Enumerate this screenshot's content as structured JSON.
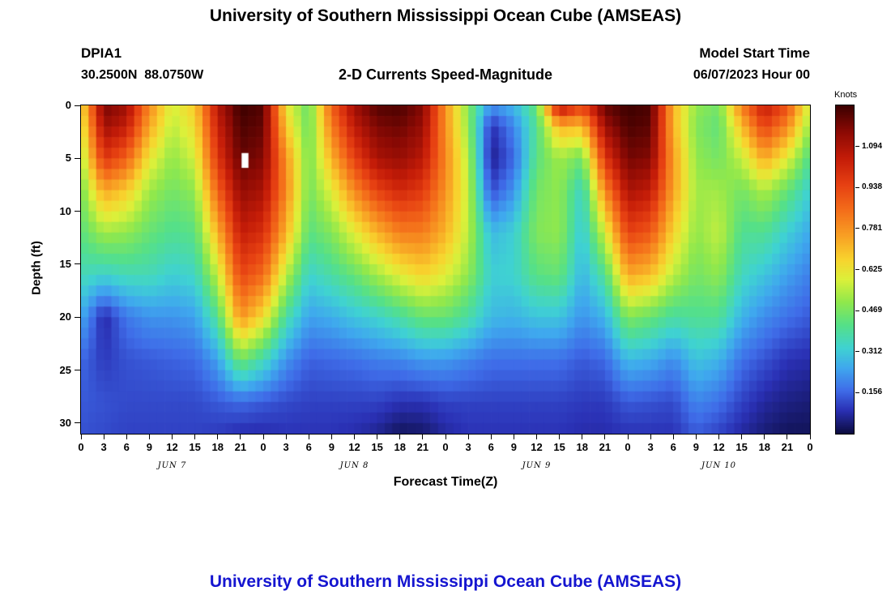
{
  "header": {
    "title": "University of Southern Mississippi Ocean Cube (AMSEAS)",
    "station": "DPIA1",
    "coordinates": "30.2500N  88.0750W",
    "subtitle": "2-D Currents Speed-Magnitude",
    "model_start_label": "Model Start Time",
    "model_start_value": "06/07/2023 Hour 00"
  },
  "footer": {
    "next_title": "University of Southern Mississippi Ocean Cube (AMSEAS)",
    "title_color": "#1515d0"
  },
  "chart_data": {
    "type": "heatmap",
    "title": "2-D Currents Speed-Magnitude",
    "xlabel": "Forecast Time(Z)",
    "ylabel": "Depth (ft)",
    "colorbar_label": "Knots",
    "colorbar_ticks": [
      0.156,
      0.312,
      0.469,
      0.625,
      0.781,
      0.938,
      1.094
    ],
    "value_range": [
      0,
      1.25
    ],
    "grid": false,
    "x_hours": [
      0,
      3,
      6,
      9,
      12,
      15,
      18,
      21,
      24,
      27,
      30,
      33,
      36,
      39,
      42,
      45,
      48,
      51,
      54,
      57,
      60,
      63,
      66,
      69,
      72,
      75,
      78,
      81,
      84,
      87,
      90,
      93,
      96
    ],
    "x_tick_labels": [
      "0",
      "3",
      "6",
      "9",
      "12",
      "15",
      "18",
      "21",
      "0",
      "3",
      "6",
      "9",
      "12",
      "15",
      "18",
      "21",
      "0",
      "3",
      "6",
      "9",
      "12",
      "15",
      "18",
      "21",
      "0",
      "3",
      "6",
      "9",
      "12",
      "15",
      "18",
      "21",
      "0"
    ],
    "day_labels": [
      {
        "label": "JUN 7",
        "center_hour": 12
      },
      {
        "label": "JUN 8",
        "center_hour": 36
      },
      {
        "label": "JUN 9",
        "center_hour": 60
      },
      {
        "label": "JUN 10",
        "center_hour": 84
      }
    ],
    "y_ticks": [
      0,
      5,
      10,
      15,
      20,
      25,
      30
    ],
    "depth_levels": [
      0,
      2,
      5,
      8,
      12,
      16,
      20,
      24,
      28,
      31
    ],
    "values_knots": [
      [
        0.62,
        0.58,
        0.52,
        0.46,
        0.42,
        0.36,
        0.26,
        0.16,
        0.14,
        0.13
      ],
      [
        1.18,
        1.12,
        0.98,
        0.75,
        0.52,
        0.33,
        0.07,
        0.1,
        0.13,
        0.12
      ],
      [
        1.12,
        1.05,
        0.88,
        0.68,
        0.5,
        0.36,
        0.18,
        0.13,
        0.12,
        0.11
      ],
      [
        0.8,
        0.74,
        0.62,
        0.52,
        0.44,
        0.36,
        0.22,
        0.14,
        0.12,
        0.11
      ],
      [
        0.58,
        0.55,
        0.5,
        0.46,
        0.4,
        0.32,
        0.22,
        0.15,
        0.12,
        0.11
      ],
      [
        0.68,
        0.64,
        0.58,
        0.5,
        0.42,
        0.34,
        0.24,
        0.16,
        0.12,
        0.11
      ],
      [
        1.08,
        1.04,
        0.98,
        0.88,
        0.72,
        0.56,
        0.4,
        0.24,
        0.14,
        0.1
      ],
      [
        1.25,
        1.23,
        1.2,
        1.14,
        1.05,
        0.94,
        0.78,
        0.46,
        0.16,
        0.08
      ],
      [
        1.22,
        1.2,
        1.16,
        1.1,
        1.0,
        0.86,
        0.64,
        0.36,
        0.14,
        0.08
      ],
      [
        0.62,
        0.68,
        0.78,
        0.8,
        0.72,
        0.55,
        0.38,
        0.22,
        0.12,
        0.09
      ],
      [
        0.44,
        0.44,
        0.46,
        0.46,
        0.42,
        0.33,
        0.24,
        0.15,
        0.11,
        0.09
      ],
      [
        0.88,
        0.82,
        0.72,
        0.6,
        0.48,
        0.38,
        0.26,
        0.16,
        0.11,
        0.09
      ],
      [
        1.12,
        1.06,
        0.95,
        0.8,
        0.6,
        0.44,
        0.3,
        0.17,
        0.11,
        0.08
      ],
      [
        1.22,
        1.17,
        1.1,
        0.95,
        0.72,
        0.52,
        0.33,
        0.19,
        0.11,
        0.06
      ],
      [
        1.23,
        1.19,
        1.13,
        1.02,
        0.82,
        0.6,
        0.38,
        0.2,
        0.09,
        0.02
      ],
      [
        1.16,
        1.13,
        1.07,
        0.97,
        0.82,
        0.66,
        0.44,
        0.23,
        0.09,
        0.03
      ],
      [
        0.78,
        0.78,
        0.8,
        0.78,
        0.72,
        0.6,
        0.44,
        0.23,
        0.11,
        0.07
      ],
      [
        0.48,
        0.5,
        0.54,
        0.56,
        0.55,
        0.5,
        0.38,
        0.2,
        0.11,
        0.09
      ],
      [
        0.22,
        0.08,
        0.05,
        0.12,
        0.28,
        0.32,
        0.28,
        0.17,
        0.11,
        0.09
      ],
      [
        0.28,
        0.2,
        0.16,
        0.22,
        0.32,
        0.33,
        0.27,
        0.17,
        0.11,
        0.09
      ],
      [
        0.44,
        0.4,
        0.42,
        0.46,
        0.48,
        0.42,
        0.3,
        0.17,
        0.11,
        0.09
      ],
      [
        1.12,
        0.72,
        0.52,
        0.5,
        0.5,
        0.44,
        0.3,
        0.17,
        0.11,
        0.09
      ],
      [
        0.95,
        0.7,
        0.45,
        0.33,
        0.3,
        0.27,
        0.22,
        0.14,
        0.1,
        0.08
      ],
      [
        1.2,
        1.12,
        0.98,
        0.8,
        0.58,
        0.4,
        0.27,
        0.16,
        0.1,
        0.08
      ],
      [
        1.25,
        1.23,
        1.18,
        1.1,
        0.95,
        0.74,
        0.48,
        0.28,
        0.14,
        0.09
      ],
      [
        1.23,
        1.21,
        1.16,
        1.06,
        0.9,
        0.7,
        0.44,
        0.26,
        0.13,
        0.09
      ],
      [
        0.72,
        0.72,
        0.76,
        0.75,
        0.66,
        0.55,
        0.38,
        0.21,
        0.12,
        0.09
      ],
      [
        0.5,
        0.48,
        0.5,
        0.52,
        0.5,
        0.46,
        0.4,
        0.3,
        0.2,
        0.14
      ],
      [
        0.46,
        0.43,
        0.46,
        0.52,
        0.56,
        0.5,
        0.4,
        0.27,
        0.17,
        0.11
      ],
      [
        0.82,
        0.7,
        0.56,
        0.46,
        0.4,
        0.35,
        0.27,
        0.17,
        0.11,
        0.07
      ],
      [
        1.06,
        0.95,
        0.74,
        0.54,
        0.4,
        0.3,
        0.21,
        0.13,
        0.07,
        0.04
      ],
      [
        0.92,
        0.8,
        0.6,
        0.44,
        0.32,
        0.24,
        0.17,
        0.09,
        0.05,
        0.02
      ],
      [
        0.56,
        0.5,
        0.4,
        0.32,
        0.25,
        0.19,
        0.14,
        0.08,
        0.04,
        0.02
      ]
    ],
    "missing_data": {
      "hour": 21.6,
      "depth_ft": 5.2,
      "width_hours": 0.9,
      "height_ft": 1.4
    },
    "colormap": [
      [
        0.0,
        "#0c0c40"
      ],
      [
        0.07,
        "#2a30b4"
      ],
      [
        0.13,
        "#3f6ce8"
      ],
      [
        0.2,
        "#3fa8ee"
      ],
      [
        0.26,
        "#3fd2d2"
      ],
      [
        0.33,
        "#55e088"
      ],
      [
        0.4,
        "#90e84c"
      ],
      [
        0.47,
        "#dcf03a"
      ],
      [
        0.53,
        "#f8d42e"
      ],
      [
        0.6,
        "#f8a224"
      ],
      [
        0.68,
        "#f46e1a"
      ],
      [
        0.76,
        "#e64012"
      ],
      [
        0.84,
        "#c41c08"
      ],
      [
        0.92,
        "#8c0a04"
      ],
      [
        1.0,
        "#3c0000"
      ]
    ]
  }
}
